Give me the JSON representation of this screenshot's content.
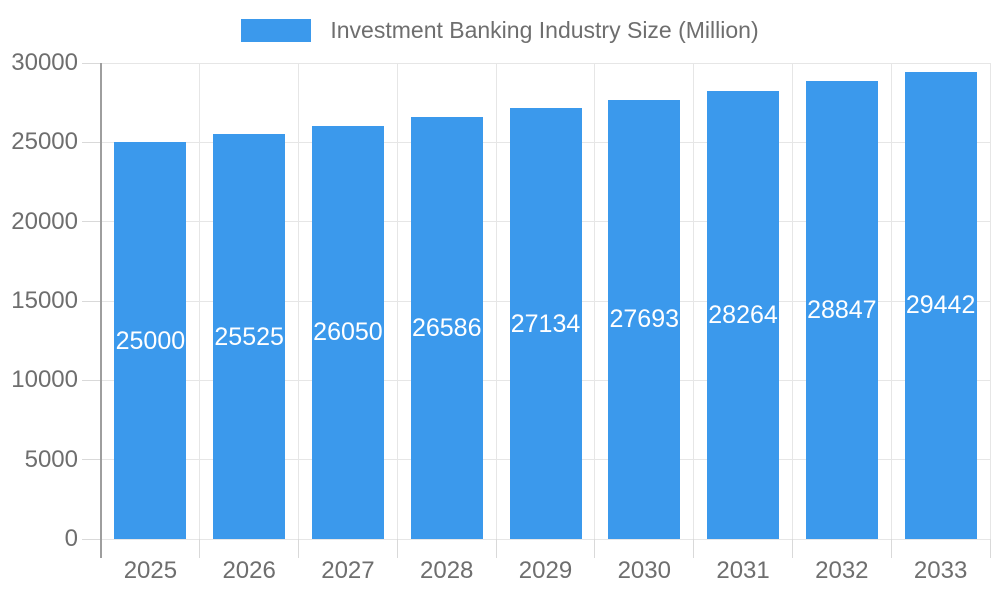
{
  "legend": {
    "label": "Investment Banking Industry Size (Million)"
  },
  "colors": {
    "bar": "#3b99ec",
    "grid": "#e6e6e6",
    "tick": "#d9d9d9",
    "axis": "#9e9e9e",
    "tick_text": "#6e6e6e",
    "bar_label": "#ffffff",
    "background": "#ffffff"
  },
  "chart_data": {
    "type": "bar",
    "title": "Investment Banking Industry Size (Million)",
    "categories": [
      "2025",
      "2026",
      "2027",
      "2028",
      "2029",
      "2030",
      "2031",
      "2032",
      "2033"
    ],
    "values": [
      25000,
      25525,
      26050,
      26586,
      27134,
      27693,
      28264,
      28847,
      29442
    ],
    "bar_labels": [
      "25000",
      "25525",
      "26050",
      "26586",
      "27134",
      "27693",
      "28264",
      "28847",
      "29442"
    ],
    "xlabel": "",
    "ylabel": "",
    "ylim": [
      0,
      30000
    ],
    "y_ticks": [
      0,
      5000,
      10000,
      15000,
      20000,
      25000,
      30000
    ],
    "grid": "both",
    "legend_position": "top",
    "bar_labels_visible": true,
    "bar_label_position": "center"
  }
}
